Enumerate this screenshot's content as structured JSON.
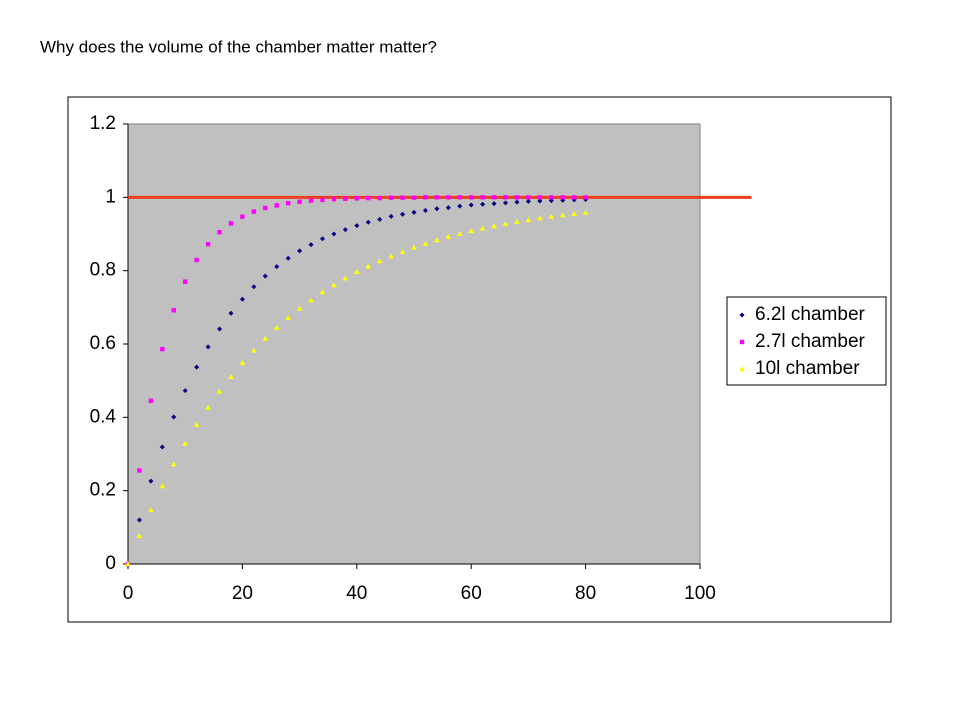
{
  "chart_data": {
    "type": "scatter",
    "title": "Why does the volume of the chamber matter matter?",
    "x": [
      0,
      2,
      4,
      6,
      8,
      10,
      12,
      14,
      16,
      18,
      20,
      22,
      24,
      26,
      28,
      30,
      32,
      34,
      36,
      38,
      40,
      42,
      44,
      46,
      48,
      50,
      52,
      54,
      56,
      58,
      60,
      62,
      64,
      66,
      68,
      70,
      72,
      74,
      76,
      78,
      80
    ],
    "series": [
      {
        "name": "6.2l chamber",
        "color": "#000080",
        "marker": "diamond",
        "values": [
          0,
          0.12,
          0.226,
          0.319,
          0.401,
          0.473,
          0.537,
          0.592,
          0.641,
          0.684,
          0.722,
          0.756,
          0.785,
          0.811,
          0.834,
          0.854,
          0.871,
          0.887,
          0.9,
          0.912,
          0.923,
          0.932,
          0.94,
          0.948,
          0.954,
          0.959,
          0.964,
          0.969,
          0.972,
          0.976,
          0.979,
          0.981,
          0.983,
          0.985,
          0.987,
          0.989,
          0.99,
          0.991,
          0.992,
          0.993,
          0.994
        ]
      },
      {
        "name": "2.7l chamber",
        "color": "#ff00ff",
        "marker": "square",
        "values": [
          0,
          0.255,
          0.445,
          0.586,
          0.692,
          0.77,
          0.829,
          0.872,
          0.905,
          0.929,
          0.947,
          0.961,
          0.971,
          0.978,
          0.984,
          0.988,
          0.991,
          0.993,
          0.995,
          0.996,
          0.997,
          0.998,
          0.998,
          0.999,
          0.999,
          0.999,
          1,
          1,
          1,
          1,
          1,
          1,
          1,
          1,
          1,
          1,
          1,
          1,
          1,
          1,
          1
        ]
      },
      {
        "name": "10l chamber",
        "color": "#ffff00",
        "marker": "triangle",
        "values": [
          0,
          0.076,
          0.147,
          0.212,
          0.272,
          0.328,
          0.379,
          0.426,
          0.47,
          0.51,
          0.548,
          0.582,
          0.614,
          0.644,
          0.671,
          0.696,
          0.719,
          0.741,
          0.76,
          0.779,
          0.796,
          0.811,
          0.826,
          0.839,
          0.851,
          0.863,
          0.873,
          0.883,
          0.892,
          0.9,
          0.908,
          0.915,
          0.921,
          0.927,
          0.933,
          0.938,
          0.943,
          0.947,
          0.951,
          0.955,
          0.958
        ]
      }
    ],
    "reference_line": {
      "x": [
        0,
        109
      ],
      "values": [
        1,
        1
      ],
      "color": "#e8401c"
    },
    "xlim": [
      0,
      100
    ],
    "xticks": [
      0,
      20,
      40,
      60,
      80,
      100
    ],
    "ylim": [
      0,
      1.2
    ],
    "yticks": [
      0,
      0.2,
      0.4,
      0.6,
      0.8,
      1,
      1.2
    ],
    "plot_background": "#c0c0c0",
    "legend_position": "right"
  }
}
